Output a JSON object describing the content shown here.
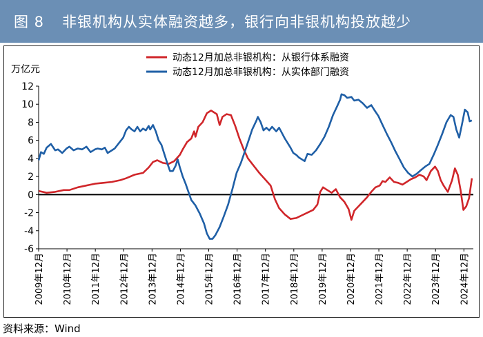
{
  "header": {
    "figure_no": "图 8",
    "title": "非银机构从实体融资越多，银行向非银机构投放越少"
  },
  "source_note": "资料来源：Wind",
  "chart_data": {
    "type": "line",
    "ylabel": "万亿元",
    "ylim": [
      -6,
      12
    ],
    "yticks": [
      -6,
      -4,
      -2,
      0,
      2,
      4,
      6,
      8,
      10,
      12
    ],
    "xlim": [
      2009.917,
      2025.25
    ],
    "xticks": [
      "2009年12月",
      "2010年12月",
      "2011年12月",
      "2012年12月",
      "2013年12月",
      "2014年12月",
      "2015年12月",
      "2016年12月",
      "2017年12月",
      "2018年12月",
      "2019年12月",
      "2020年12月",
      "2021年12月",
      "2022年12月",
      "2023年12月",
      "2024年12月"
    ],
    "legend_position": "top-center",
    "grid": false,
    "series": [
      {
        "name": "动态12月加总非银机构：从银行体系融资",
        "color": "#d0262a",
        "points": [
          [
            2009.92,
            0.4
          ],
          [
            2010.2,
            0.2
          ],
          [
            2010.5,
            0.3
          ],
          [
            2010.8,
            0.5
          ],
          [
            2011.0,
            0.5
          ],
          [
            2011.3,
            0.8
          ],
          [
            2011.6,
            1.0
          ],
          [
            2011.9,
            1.2
          ],
          [
            2012.2,
            1.3
          ],
          [
            2012.5,
            1.4
          ],
          [
            2012.8,
            1.6
          ],
          [
            2013.0,
            1.8
          ],
          [
            2013.3,
            2.2
          ],
          [
            2013.6,
            2.4
          ],
          [
            2013.8,
            3.0
          ],
          [
            2013.95,
            3.6
          ],
          [
            2014.1,
            3.8
          ],
          [
            2014.3,
            3.5
          ],
          [
            2014.5,
            3.4
          ],
          [
            2014.7,
            3.7
          ],
          [
            2014.9,
            4.4
          ],
          [
            2015.0,
            5.0
          ],
          [
            2015.15,
            5.8
          ],
          [
            2015.3,
            6.2
          ],
          [
            2015.4,
            7.0
          ],
          [
            2015.45,
            6.4
          ],
          [
            2015.55,
            7.5
          ],
          [
            2015.7,
            8.0
          ],
          [
            2015.85,
            9.0
          ],
          [
            2016.0,
            9.3
          ],
          [
            2016.2,
            8.9
          ],
          [
            2016.3,
            7.7
          ],
          [
            2016.4,
            8.6
          ],
          [
            2016.55,
            8.9
          ],
          [
            2016.7,
            8.8
          ],
          [
            2016.85,
            7.6
          ],
          [
            2017.0,
            6.2
          ],
          [
            2017.15,
            5.0
          ],
          [
            2017.3,
            4.0
          ],
          [
            2017.5,
            3.2
          ],
          [
            2017.7,
            2.4
          ],
          [
            2017.9,
            1.7
          ],
          [
            2018.1,
            1.0
          ],
          [
            2018.25,
            -0.5
          ],
          [
            2018.4,
            -1.5
          ],
          [
            2018.6,
            -2.2
          ],
          [
            2018.8,
            -2.7
          ],
          [
            2019.0,
            -2.6
          ],
          [
            2019.2,
            -2.3
          ],
          [
            2019.4,
            -2.0
          ],
          [
            2019.6,
            -1.7
          ],
          [
            2019.75,
            -1.1
          ],
          [
            2019.85,
            0.3
          ],
          [
            2019.95,
            0.8
          ],
          [
            2020.1,
            0.5
          ],
          [
            2020.25,
            0.2
          ],
          [
            2020.4,
            0.6
          ],
          [
            2020.55,
            -0.3
          ],
          [
            2020.7,
            -0.8
          ],
          [
            2020.85,
            -1.6
          ],
          [
            2020.95,
            -2.8
          ],
          [
            2021.05,
            -1.8
          ],
          [
            2021.2,
            -1.3
          ],
          [
            2021.35,
            -0.8
          ],
          [
            2021.5,
            -0.3
          ],
          [
            2021.65,
            0.3
          ],
          [
            2021.8,
            0.8
          ],
          [
            2021.95,
            1.0
          ],
          [
            2022.05,
            1.5
          ],
          [
            2022.15,
            1.4
          ],
          [
            2022.3,
            1.9
          ],
          [
            2022.45,
            1.4
          ],
          [
            2022.6,
            1.3
          ],
          [
            2022.75,
            1.1
          ],
          [
            2022.9,
            1.4
          ],
          [
            2023.05,
            1.7
          ],
          [
            2023.2,
            1.9
          ],
          [
            2023.35,
            2.2
          ],
          [
            2023.5,
            2.0
          ],
          [
            2023.6,
            1.6
          ],
          [
            2023.75,
            2.6
          ],
          [
            2023.9,
            3.1
          ],
          [
            2024.0,
            2.6
          ],
          [
            2024.1,
            1.6
          ],
          [
            2024.2,
            1.0
          ],
          [
            2024.35,
            0.3
          ],
          [
            2024.5,
            1.6
          ],
          [
            2024.6,
            2.9
          ],
          [
            2024.7,
            2.2
          ],
          [
            2024.8,
            0.5
          ],
          [
            2024.9,
            -1.7
          ],
          [
            2025.0,
            -1.3
          ],
          [
            2025.1,
            -0.4
          ],
          [
            2025.2,
            1.8
          ]
        ]
      },
      {
        "name": "动态12月加总非银机构：从实体部门融资",
        "color": "#1f5fa6",
        "points": [
          [
            2009.92,
            3.8
          ],
          [
            2010.0,
            4.7
          ],
          [
            2010.1,
            4.5
          ],
          [
            2010.2,
            5.2
          ],
          [
            2010.35,
            5.6
          ],
          [
            2010.5,
            4.9
          ],
          [
            2010.6,
            5.0
          ],
          [
            2010.75,
            4.6
          ],
          [
            2010.9,
            5.1
          ],
          [
            2011.0,
            5.3
          ],
          [
            2011.15,
            4.9
          ],
          [
            2011.3,
            5.1
          ],
          [
            2011.45,
            5.0
          ],
          [
            2011.6,
            5.3
          ],
          [
            2011.75,
            4.7
          ],
          [
            2011.9,
            5.0
          ],
          [
            2012.0,
            5.1
          ],
          [
            2012.15,
            5.0
          ],
          [
            2012.25,
            5.2
          ],
          [
            2012.35,
            4.6
          ],
          [
            2012.5,
            4.9
          ],
          [
            2012.6,
            5.1
          ],
          [
            2012.75,
            5.7
          ],
          [
            2012.9,
            6.3
          ],
          [
            2013.0,
            7.1
          ],
          [
            2013.1,
            7.5
          ],
          [
            2013.2,
            7.2
          ],
          [
            2013.3,
            7.0
          ],
          [
            2013.4,
            7.5
          ],
          [
            2013.5,
            7.0
          ],
          [
            2013.6,
            7.3
          ],
          [
            2013.7,
            7.1
          ],
          [
            2013.8,
            7.6
          ],
          [
            2013.85,
            7.2
          ],
          [
            2013.95,
            7.7
          ],
          [
            2014.05,
            7.0
          ],
          [
            2014.15,
            6.0
          ],
          [
            2014.25,
            5.5
          ],
          [
            2014.35,
            4.5
          ],
          [
            2014.45,
            3.5
          ],
          [
            2014.55,
            2.6
          ],
          [
            2014.65,
            2.6
          ],
          [
            2014.75,
            3.2
          ],
          [
            2014.82,
            3.9
          ],
          [
            2014.9,
            3.0
          ],
          [
            2015.0,
            2.0
          ],
          [
            2015.1,
            1.2
          ],
          [
            2015.2,
            0.3
          ],
          [
            2015.3,
            -0.6
          ],
          [
            2015.45,
            -1.2
          ],
          [
            2015.6,
            -2.1
          ],
          [
            2015.75,
            -3.2
          ],
          [
            2015.85,
            -4.3
          ],
          [
            2015.95,
            -4.9
          ],
          [
            2016.05,
            -4.9
          ],
          [
            2016.15,
            -4.5
          ],
          [
            2016.3,
            -3.6
          ],
          [
            2016.45,
            -2.4
          ],
          [
            2016.6,
            -1.1
          ],
          [
            2016.75,
            0.6
          ],
          [
            2016.9,
            2.4
          ],
          [
            2017.05,
            3.5
          ],
          [
            2017.15,
            4.4
          ],
          [
            2017.3,
            5.8
          ],
          [
            2017.45,
            7.2
          ],
          [
            2017.6,
            8.2
          ],
          [
            2017.65,
            8.6
          ],
          [
            2017.75,
            8.0
          ],
          [
            2017.85,
            7.1
          ],
          [
            2017.95,
            7.4
          ],
          [
            2018.05,
            7.1
          ],
          [
            2018.15,
            7.5
          ],
          [
            2018.3,
            7.0
          ],
          [
            2018.4,
            7.4
          ],
          [
            2018.5,
            6.8
          ],
          [
            2018.6,
            6.2
          ],
          [
            2018.7,
            5.7
          ],
          [
            2018.8,
            5.2
          ],
          [
            2018.9,
            4.6
          ],
          [
            2019.0,
            4.4
          ],
          [
            2019.1,
            4.1
          ],
          [
            2019.2,
            3.9
          ],
          [
            2019.3,
            3.7
          ],
          [
            2019.4,
            4.5
          ],
          [
            2019.55,
            4.4
          ],
          [
            2019.7,
            4.9
          ],
          [
            2019.85,
            5.6
          ],
          [
            2020.0,
            6.4
          ],
          [
            2020.15,
            7.5
          ],
          [
            2020.3,
            8.8
          ],
          [
            2020.45,
            9.8
          ],
          [
            2020.55,
            10.5
          ],
          [
            2020.6,
            11.1
          ],
          [
            2020.7,
            11.0
          ],
          [
            2020.8,
            10.7
          ],
          [
            2020.95,
            10.8
          ],
          [
            2021.05,
            10.4
          ],
          [
            2021.2,
            10.5
          ],
          [
            2021.35,
            10.1
          ],
          [
            2021.5,
            9.6
          ],
          [
            2021.65,
            9.9
          ],
          [
            2021.75,
            9.4
          ],
          [
            2021.9,
            8.7
          ],
          [
            2022.05,
            7.7
          ],
          [
            2022.2,
            6.7
          ],
          [
            2022.35,
            5.8
          ],
          [
            2022.5,
            4.8
          ],
          [
            2022.65,
            3.9
          ],
          [
            2022.8,
            3.0
          ],
          [
            2022.95,
            2.4
          ],
          [
            2023.1,
            2.0
          ],
          [
            2023.25,
            2.3
          ],
          [
            2023.4,
            2.7
          ],
          [
            2023.55,
            3.1
          ],
          [
            2023.7,
            3.4
          ],
          [
            2023.85,
            4.4
          ],
          [
            2024.0,
            5.5
          ],
          [
            2024.15,
            6.7
          ],
          [
            2024.3,
            8.0
          ],
          [
            2024.45,
            8.8
          ],
          [
            2024.55,
            8.6
          ],
          [
            2024.65,
            7.2
          ],
          [
            2024.75,
            6.3
          ],
          [
            2024.85,
            7.8
          ],
          [
            2024.95,
            9.4
          ],
          [
            2025.05,
            9.1
          ],
          [
            2025.12,
            8.1
          ],
          [
            2025.2,
            8.2
          ]
        ]
      }
    ]
  }
}
